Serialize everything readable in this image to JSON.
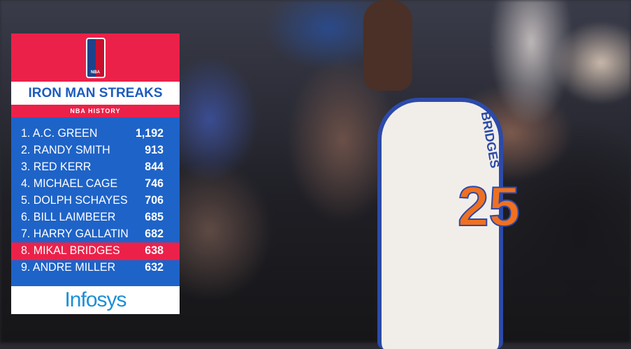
{
  "graphic": {
    "logo": "NBA",
    "title": "IRON MAN STREAKS",
    "subtitle": "NBA HISTORY",
    "rows": [
      {
        "label": "1. A.C. GREEN",
        "value": "1,192"
      },
      {
        "label": "2. RANDY SMITH",
        "value": "913"
      },
      {
        "label": "3. RED KERR",
        "value": "844"
      },
      {
        "label": "4. MICHAEL CAGE",
        "value": "746"
      },
      {
        "label": "5. DOLPH SCHAYES",
        "value": "706"
      },
      {
        "label": "6. BILL LAIMBEER",
        "value": "685"
      },
      {
        "label": "7. HARRY GALLATIN",
        "value": "682"
      },
      {
        "label": "8. MIKAL BRIDGES",
        "value": "638"
      },
      {
        "label": "9. ANDRE MILLER",
        "value": "632"
      }
    ],
    "highlight_index": 7,
    "sponsor": "Infosys",
    "colors": {
      "red": "#ec2149",
      "blue": "#1e63c8",
      "title_blue": "#1d5cbf"
    }
  },
  "scene": {
    "jersey_name": "BRIDGES",
    "jersey_number": "25"
  }
}
